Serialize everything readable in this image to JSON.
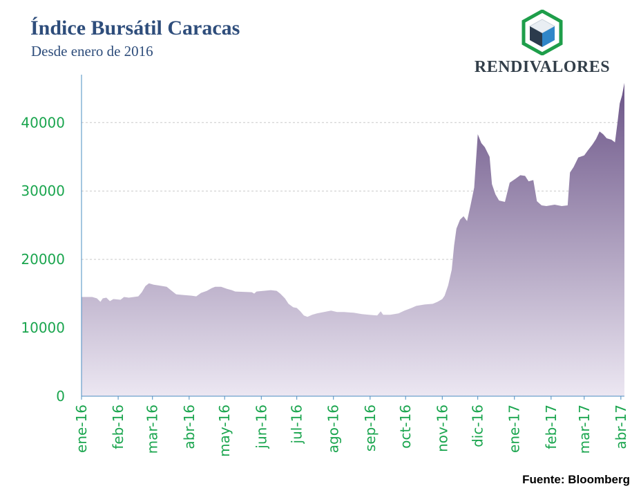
{
  "header": {
    "title": "Índice Bursátil Caracas",
    "subtitle": "Desde enero de 2016"
  },
  "logo": {
    "text": "RENDIVALORES",
    "icon": "cube-icon"
  },
  "source": "Fuente: Bloomberg",
  "colors": {
    "axis_text": "#1aa54e",
    "title": "#2e4d7b",
    "area_top": "#6b5487",
    "area_bottom": "#ece7f2",
    "axis_line": "#4a8cc0"
  },
  "chart_data": {
    "type": "area",
    "title": "Índice Bursátil Caracas",
    "subtitle": "Desde enero de 2016",
    "xlabel": "",
    "ylabel": "",
    "ylim": [
      0,
      47000
    ],
    "yticks": [
      0,
      10000,
      20000,
      30000,
      40000
    ],
    "xlim": [
      "2016-01-01",
      "2017-04-04"
    ],
    "xticks": [
      {
        "label": "ene-16",
        "date": "2016-01-01"
      },
      {
        "label": "feb-16",
        "date": "2016-02-01"
      },
      {
        "label": "mar-16",
        "date": "2016-03-01"
      },
      {
        "label": "abr-16",
        "date": "2016-04-01"
      },
      {
        "label": "may-16",
        "date": "2016-05-01"
      },
      {
        "label": "jun-16",
        "date": "2016-06-01"
      },
      {
        "label": "jul-16",
        "date": "2016-07-01"
      },
      {
        "label": "ago-16",
        "date": "2016-08-01"
      },
      {
        "label": "sep-16",
        "date": "2016-09-01"
      },
      {
        "label": "oct-16",
        "date": "2016-10-01"
      },
      {
        "label": "nov-16",
        "date": "2016-11-01"
      },
      {
        "label": "dic-16",
        "date": "2016-12-01"
      },
      {
        "label": "ene-17",
        "date": "2017-01-01"
      },
      {
        "label": "feb-17",
        "date": "2017-02-01"
      },
      {
        "label": "mar-17",
        "date": "2017-03-01"
      },
      {
        "label": "abr-17",
        "date": "2017-04-01"
      }
    ],
    "grid": "horizontal-dashed",
    "series": [
      {
        "points": [
          [
            "2016-01-01",
            14500
          ],
          [
            "2016-01-10",
            14500
          ],
          [
            "2016-01-14",
            14300
          ],
          [
            "2016-01-17",
            13800
          ],
          [
            "2016-01-19",
            14300
          ],
          [
            "2016-01-22",
            14400
          ],
          [
            "2016-01-25",
            13900
          ],
          [
            "2016-01-28",
            14200
          ],
          [
            "2016-02-03",
            14100
          ],
          [
            "2016-02-06",
            14500
          ],
          [
            "2016-02-10",
            14400
          ],
          [
            "2016-02-18",
            14600
          ],
          [
            "2016-02-21",
            15200
          ],
          [
            "2016-02-24",
            16100
          ],
          [
            "2016-02-27",
            16500
          ],
          [
            "2016-03-02",
            16300
          ],
          [
            "2016-03-06",
            16200
          ],
          [
            "2016-03-13",
            16000
          ],
          [
            "2016-03-18",
            15300
          ],
          [
            "2016-03-21",
            14900
          ],
          [
            "2016-03-27",
            14800
          ],
          [
            "2016-04-03",
            14700
          ],
          [
            "2016-04-07",
            14600
          ],
          [
            "2016-04-11",
            15100
          ],
          [
            "2016-04-16",
            15400
          ],
          [
            "2016-04-20",
            15800
          ],
          [
            "2016-04-23",
            16000
          ],
          [
            "2016-04-28",
            16000
          ],
          [
            "2016-05-03",
            15700
          ],
          [
            "2016-05-07",
            15500
          ],
          [
            "2016-05-10",
            15300
          ],
          [
            "2016-05-24",
            15200
          ],
          [
            "2016-05-26",
            15000
          ],
          [
            "2016-05-28",
            15300
          ],
          [
            "2016-06-03",
            15400
          ],
          [
            "2016-06-09",
            15500
          ],
          [
            "2016-06-14",
            15400
          ],
          [
            "2016-06-17",
            15000
          ],
          [
            "2016-06-21",
            14300
          ],
          [
            "2016-06-24",
            13500
          ],
          [
            "2016-06-28",
            13000
          ],
          [
            "2016-07-01",
            12900
          ],
          [
            "2016-07-04",
            12400
          ],
          [
            "2016-07-07",
            11800
          ],
          [
            "2016-07-10",
            11600
          ],
          [
            "2016-07-14",
            11900
          ],
          [
            "2016-07-18",
            12100
          ],
          [
            "2016-07-24",
            12300
          ],
          [
            "2016-07-30",
            12500
          ],
          [
            "2016-08-04",
            12300
          ],
          [
            "2016-08-10",
            12300
          ],
          [
            "2016-08-18",
            12200
          ],
          [
            "2016-08-25",
            12000
          ],
          [
            "2016-08-31",
            11900
          ],
          [
            "2016-09-07",
            11800
          ],
          [
            "2016-09-10",
            12400
          ],
          [
            "2016-09-12",
            11900
          ],
          [
            "2016-09-18",
            11900
          ],
          [
            "2016-09-25",
            12100
          ],
          [
            "2016-09-30",
            12500
          ],
          [
            "2016-10-06",
            12900
          ],
          [
            "2016-10-10",
            13200
          ],
          [
            "2016-10-17",
            13400
          ],
          [
            "2016-10-24",
            13500
          ],
          [
            "2016-10-28",
            13800
          ],
          [
            "2016-11-01",
            14200
          ],
          [
            "2016-11-03",
            14700
          ],
          [
            "2016-11-06",
            16200
          ],
          [
            "2016-11-09",
            18500
          ],
          [
            "2016-11-11",
            22000
          ],
          [
            "2016-11-13",
            24500
          ],
          [
            "2016-11-16",
            25800
          ],
          [
            "2016-11-19",
            26300
          ],
          [
            "2016-11-22",
            25600
          ],
          [
            "2016-11-25",
            28000
          ],
          [
            "2016-11-28",
            30500
          ],
          [
            "2016-12-01",
            38300
          ],
          [
            "2016-12-04",
            37000
          ],
          [
            "2016-12-07",
            36400
          ],
          [
            "2016-12-11",
            35000
          ],
          [
            "2016-12-13",
            31000
          ],
          [
            "2016-12-16",
            29500
          ],
          [
            "2016-12-19",
            28600
          ],
          [
            "2016-12-24",
            28400
          ],
          [
            "2016-12-28",
            31200
          ],
          [
            "2017-01-02",
            31800
          ],
          [
            "2017-01-06",
            32300
          ],
          [
            "2017-01-10",
            32200
          ],
          [
            "2017-01-13",
            31400
          ],
          [
            "2017-01-17",
            31600
          ],
          [
            "2017-01-20",
            28500
          ],
          [
            "2017-01-24",
            27900
          ],
          [
            "2017-01-28",
            27800
          ],
          [
            "2017-02-04",
            28000
          ],
          [
            "2017-02-10",
            27800
          ],
          [
            "2017-02-15",
            27900
          ],
          [
            "2017-02-17",
            32700
          ],
          [
            "2017-02-20",
            33500
          ],
          [
            "2017-02-24",
            34900
          ],
          [
            "2017-03-01",
            35200
          ],
          [
            "2017-03-04",
            35900
          ],
          [
            "2017-03-08",
            36800
          ],
          [
            "2017-03-11",
            37600
          ],
          [
            "2017-03-14",
            38700
          ],
          [
            "2017-03-17",
            38300
          ],
          [
            "2017-03-20",
            37700
          ],
          [
            "2017-03-24",
            37500
          ],
          [
            "2017-03-27",
            37100
          ],
          [
            "2017-03-29",
            39800
          ],
          [
            "2017-03-31",
            42800
          ],
          [
            "2017-04-02",
            44000
          ],
          [
            "2017-04-04",
            45800
          ]
        ]
      }
    ]
  }
}
